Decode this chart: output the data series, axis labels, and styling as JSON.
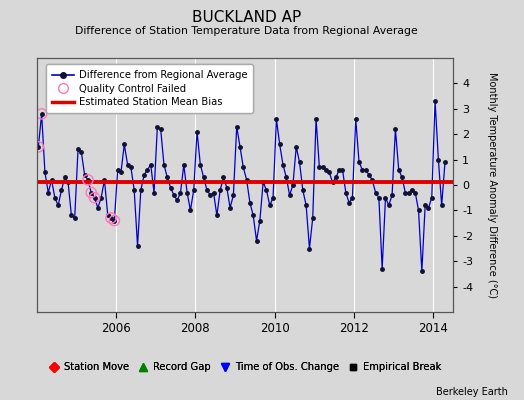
{
  "title": "BUCKLAND AP",
  "subtitle": "Difference of Station Temperature Data from Regional Average",
  "ylabel_right": "Monthly Temperature Anomaly Difference (°C)",
  "ylim": [
    -5,
    5
  ],
  "xlim": [
    2004.0,
    2014.5
  ],
  "xticks": [
    2006,
    2008,
    2010,
    2012,
    2014
  ],
  "yticks": [
    -4,
    -3,
    -2,
    -1,
    0,
    1,
    2,
    3,
    4
  ],
  "bias_line_y": 0.1,
  "background_color": "#d8d8d8",
  "plot_bg_color": "#d8d8d8",
  "grid_color": "white",
  "line_color": "#0000cc",
  "dot_color": "#111133",
  "bias_color": "#dd0000",
  "watermark": "Berkeley Earth",
  "times": [
    2004.042,
    2004.125,
    2004.208,
    2004.292,
    2004.375,
    2004.458,
    2004.542,
    2004.625,
    2004.708,
    2004.792,
    2004.875,
    2004.958,
    2005.042,
    2005.125,
    2005.208,
    2005.292,
    2005.375,
    2005.458,
    2005.542,
    2005.625,
    2005.708,
    2005.792,
    2005.875,
    2005.958,
    2006.042,
    2006.125,
    2006.208,
    2006.292,
    2006.375,
    2006.458,
    2006.542,
    2006.625,
    2006.708,
    2006.792,
    2006.875,
    2006.958,
    2007.042,
    2007.125,
    2007.208,
    2007.292,
    2007.375,
    2007.458,
    2007.542,
    2007.625,
    2007.708,
    2007.792,
    2007.875,
    2007.958,
    2008.042,
    2008.125,
    2008.208,
    2008.292,
    2008.375,
    2008.458,
    2008.542,
    2008.625,
    2008.708,
    2008.792,
    2008.875,
    2008.958,
    2009.042,
    2009.125,
    2009.208,
    2009.292,
    2009.375,
    2009.458,
    2009.542,
    2009.625,
    2009.708,
    2009.792,
    2009.875,
    2009.958,
    2010.042,
    2010.125,
    2010.208,
    2010.292,
    2010.375,
    2010.458,
    2010.542,
    2010.625,
    2010.708,
    2010.792,
    2010.875,
    2010.958,
    2011.042,
    2011.125,
    2011.208,
    2011.292,
    2011.375,
    2011.458,
    2011.542,
    2011.625,
    2011.708,
    2011.792,
    2011.875,
    2011.958,
    2012.042,
    2012.125,
    2012.208,
    2012.292,
    2012.375,
    2012.458,
    2012.542,
    2012.625,
    2012.708,
    2012.792,
    2012.875,
    2012.958,
    2013.042,
    2013.125,
    2013.208,
    2013.292,
    2013.375,
    2013.458,
    2013.542,
    2013.625,
    2013.708,
    2013.792,
    2013.875,
    2013.958,
    2014.042,
    2014.125,
    2014.208,
    2014.292
  ],
  "values": [
    1.5,
    2.8,
    0.5,
    -0.3,
    0.2,
    -0.5,
    -0.8,
    -0.2,
    0.3,
    0.1,
    -1.2,
    -1.3,
    1.4,
    1.3,
    0.4,
    0.2,
    -0.3,
    -0.5,
    -0.9,
    -0.5,
    0.2,
    -1.2,
    -1.3,
    -1.4,
    0.6,
    0.5,
    1.6,
    0.8,
    0.7,
    -0.2,
    -2.4,
    -0.2,
    0.4,
    0.6,
    0.8,
    -0.3,
    2.3,
    2.2,
    0.8,
    0.3,
    -0.1,
    -0.4,
    -0.6,
    -0.3,
    0.8,
    -0.3,
    -1.0,
    -0.2,
    2.1,
    0.8,
    0.3,
    -0.2,
    -0.4,
    -0.3,
    -1.2,
    -0.2,
    0.3,
    -0.1,
    -0.9,
    -0.4,
    2.3,
    1.5,
    0.7,
    0.2,
    -0.7,
    -1.2,
    -2.2,
    -1.4,
    0.1,
    -0.2,
    -0.8,
    -0.5,
    2.6,
    1.6,
    0.8,
    0.3,
    -0.4,
    0.0,
    1.5,
    0.9,
    -0.2,
    -0.8,
    -2.5,
    -1.3,
    2.6,
    0.7,
    0.7,
    0.6,
    0.5,
    0.1,
    0.3,
    0.6,
    0.6,
    -0.3,
    -0.7,
    -0.5,
    2.6,
    0.9,
    0.6,
    0.6,
    0.4,
    0.2,
    -0.3,
    -0.5,
    -3.3,
    -0.5,
    -0.8,
    -0.4,
    2.2,
    0.6,
    0.3,
    -0.3,
    -0.3,
    -0.2,
    -0.3,
    -1.0,
    -3.4,
    -0.8,
    -0.9,
    -0.5,
    3.3,
    1.0,
    -0.8,
    0.9
  ],
  "qc_failed_times": [
    2004.042,
    2004.125,
    2005.292,
    2005.375,
    2005.458,
    2005.875,
    2005.958
  ],
  "qc_failed_values": [
    1.5,
    2.8,
    0.2,
    -0.3,
    -0.5,
    -1.3,
    -1.4
  ]
}
